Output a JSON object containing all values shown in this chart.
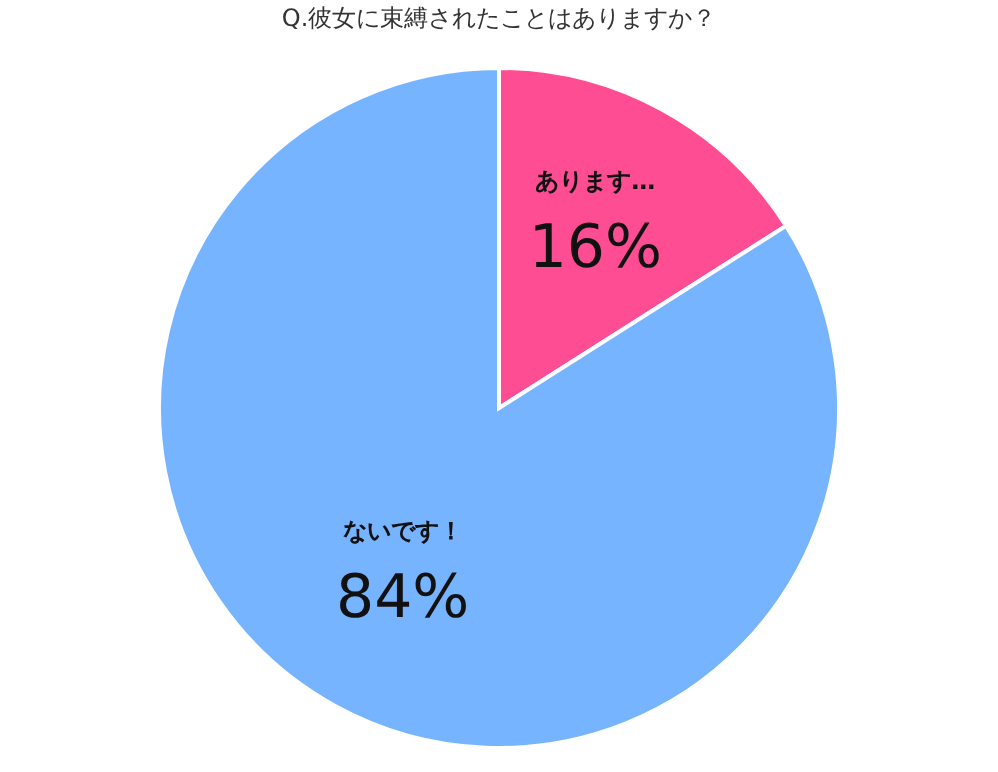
{
  "chart_data": {
    "type": "pie",
    "title": "Q.彼女に束縛されたことはありますか？",
    "categories": [
      "あります…",
      "ないです！"
    ],
    "values": [
      16,
      84
    ],
    "colors": [
      "#ff4d94",
      "#77b4ff"
    ],
    "value_labels": [
      "16%",
      "84%"
    ]
  }
}
